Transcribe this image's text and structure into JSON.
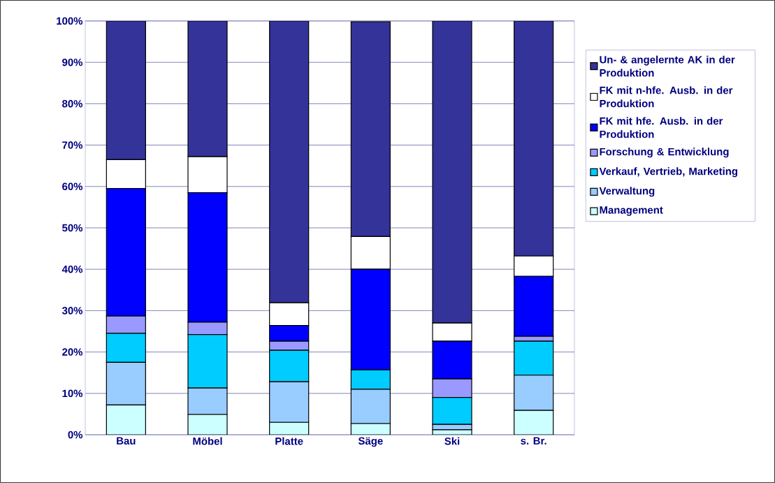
{
  "chart_data": {
    "type": "bar",
    "stacked": true,
    "categories": [
      "Bau",
      "Möbel",
      "Platte",
      "Säge",
      "Ski",
      "s. Br."
    ],
    "series": [
      {
        "name": "Management",
        "color": "#ccffff",
        "values": [
          7.2,
          4.9,
          3.0,
          2.7,
          1.2,
          5.9
        ]
      },
      {
        "name": "Verwaltung",
        "color": "#99ccff",
        "values": [
          10.3,
          6.4,
          9.8,
          8.3,
          1.3,
          8.5
        ]
      },
      {
        "name": "Verkauf, Vertrieb, Marketing",
        "color": "#00ccff",
        "values": [
          7.0,
          12.9,
          7.6,
          4.7,
          6.5,
          8.2
        ]
      },
      {
        "name": "Forschung & Entwicklung",
        "color": "#9999ff",
        "values": [
          4.2,
          3.0,
          2.2,
          null,
          4.5,
          1.2
        ]
      },
      {
        "name": "FK mit hfe. Ausb. in der Produktion",
        "color": "#0000ff",
        "values": [
          30.8,
          31.3,
          3.8,
          24.3,
          9.1,
          14.5
        ]
      },
      {
        "name": "FK mit n-hfe. Ausb. in der Produktion",
        "color": "#ffffff",
        "values": [
          7.0,
          8.7,
          5.5,
          7.9,
          4.4,
          4.9
        ]
      },
      {
        "name": "Un- & angelernte AK in der Produktion",
        "color": "#333399",
        "values": [
          33.5,
          32.8,
          68.1,
          51.9,
          73.0,
          56.8
        ]
      }
    ],
    "ylim": [
      0,
      100
    ],
    "yticks": [
      {
        "value": 0,
        "label": "0%"
      },
      {
        "value": 10,
        "label": "10%"
      },
      {
        "value": 20,
        "label": "20%"
      },
      {
        "value": 30,
        "label": "30%"
      },
      {
        "value": 40,
        "label": "40%"
      },
      {
        "value": 50,
        "label": "50%"
      },
      {
        "value": 60,
        "label": "60%"
      },
      {
        "value": 70,
        "label": "70%"
      },
      {
        "value": 80,
        "label": "80%"
      },
      {
        "value": 90,
        "label": "90%"
      },
      {
        "value": 100,
        "label": "100%"
      }
    ],
    "grid": "y",
    "legend": "right"
  }
}
